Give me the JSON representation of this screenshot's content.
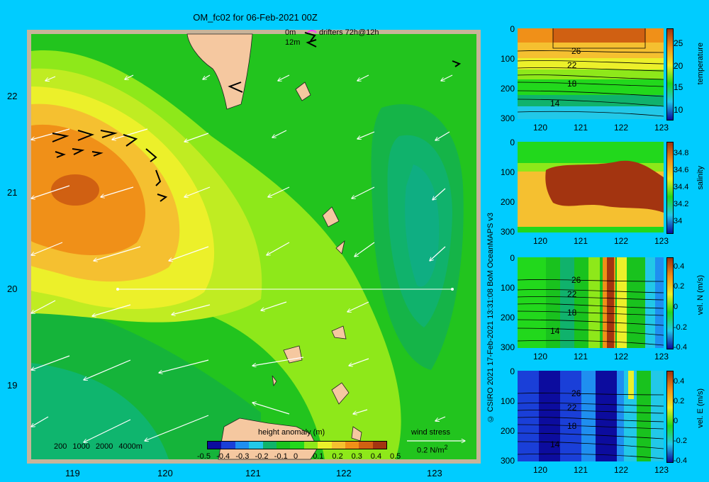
{
  "title": "OM_fc02 for 06-Feb-2021 00Z",
  "map": {
    "lon_ticks": [
      "119",
      "120",
      "121",
      "122",
      "123"
    ],
    "lat_ticks": [
      "22",
      "21",
      "20",
      "19"
    ],
    "legend": {
      "drifters_label_top": "0m",
      "drifters_label_bottom": "12m",
      "drifters_text": "drifters 72h@12h",
      "bathymetry_labels": [
        "200",
        "1000",
        "2000",
        "4000m"
      ],
      "wind_stress_label": "wind stress",
      "wind_stress_scale": "0.2 N/m",
      "wind_stress_exp": "2"
    },
    "colorbar": {
      "title": "height anomaly (m)",
      "ticks": [
        "-0.5",
        "-0.4",
        "-0.3",
        "-0.2",
        "-0.1",
        "0",
        "0.1",
        "0.2",
        "0.3",
        "0.4",
        "0.5"
      ],
      "colors": [
        "#0c0c9e",
        "#1a3fd8",
        "#1f8ff0",
        "#22c8e8",
        "#0fb36a",
        "#19c21e",
        "#22d81c",
        "#8ee81a",
        "#ecf02a",
        "#f5c030",
        "#f09018",
        "#d06012",
        "#a33410"
      ]
    }
  },
  "sections": {
    "x_ticks": [
      "120",
      "121",
      "122",
      "123"
    ],
    "y_ticks": [
      "0",
      "100",
      "200",
      "300"
    ],
    "panels": [
      {
        "name": "temperature",
        "label": "temperature",
        "cb_ticks": [
          "25",
          "20",
          "15",
          "10"
        ],
        "contour_labels": [
          "26",
          "22",
          "18",
          "14"
        ]
      },
      {
        "name": "salinity",
        "label": "salinity",
        "cb_ticks": [
          "34.8",
          "34.6",
          "34.4",
          "34.2",
          "34"
        ],
        "contour_labels": []
      },
      {
        "name": "vel-n",
        "label": "vel. N (m/s)",
        "cb_ticks": [
          "0.4",
          "0.2",
          "0",
          "-0.2",
          "-0.4"
        ],
        "contour_labels": [
          "26",
          "22",
          "18",
          "14"
        ]
      },
      {
        "name": "vel-e",
        "label": "vel. E (m/s)",
        "cb_ticks": [
          "0.4",
          "0.2",
          "0",
          "-0.2",
          "-0.4"
        ],
        "contour_labels": [
          "26",
          "22",
          "18",
          "14"
        ]
      }
    ]
  },
  "credit": "© CSIRO 2021   17-Feb-2021 13:31:08 BoM OceanMAPS v3"
}
